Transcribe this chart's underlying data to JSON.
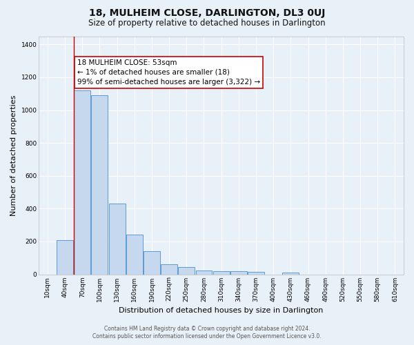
{
  "title": "18, MULHEIM CLOSE, DARLINGTON, DL3 0UJ",
  "subtitle": "Size of property relative to detached houses in Darlington",
  "xlabel": "Distribution of detached houses by size in Darlington",
  "ylabel": "Number of detached properties",
  "bar_labels": [
    "10sqm",
    "40sqm",
    "70sqm",
    "100sqm",
    "130sqm",
    "160sqm",
    "190sqm",
    "220sqm",
    "250sqm",
    "280sqm",
    "310sqm",
    "340sqm",
    "370sqm",
    "400sqm",
    "430sqm",
    "460sqm",
    "490sqm",
    "520sqm",
    "550sqm",
    "580sqm",
    "610sqm"
  ],
  "bar_values": [
    0,
    210,
    1120,
    1090,
    430,
    240,
    140,
    60,
    45,
    25,
    18,
    18,
    15,
    0,
    12,
    0,
    0,
    0,
    0,
    0,
    0
  ],
  "bar_color": "#c5d8ed",
  "bar_edge_color": "#5b9bd5",
  "vline_x": 1.5,
  "vline_color": "#cc0000",
  "annotation_text": "18 MULHEIM CLOSE: 53sqm\n← 1% of detached houses are smaller (18)\n99% of semi-detached houses are larger (3,322) →",
  "annotation_box_color": "#ffffff",
  "annotation_box_edge": "#cc0000",
  "ylim": [
    0,
    1450
  ],
  "yticks": [
    0,
    200,
    400,
    600,
    800,
    1000,
    1200,
    1400
  ],
  "footer_line1": "Contains HM Land Registry data © Crown copyright and database right 2024.",
  "footer_line2": "Contains public sector information licensed under the Open Government Licence v3.0.",
  "bg_color": "#e8f0f8",
  "plot_bg_color": "#e8f0f8",
  "title_fontsize": 10,
  "subtitle_fontsize": 8.5,
  "axis_label_fontsize": 8,
  "tick_fontsize": 6.5,
  "footer_fontsize": 5.5,
  "annotation_fontsize": 7.5
}
